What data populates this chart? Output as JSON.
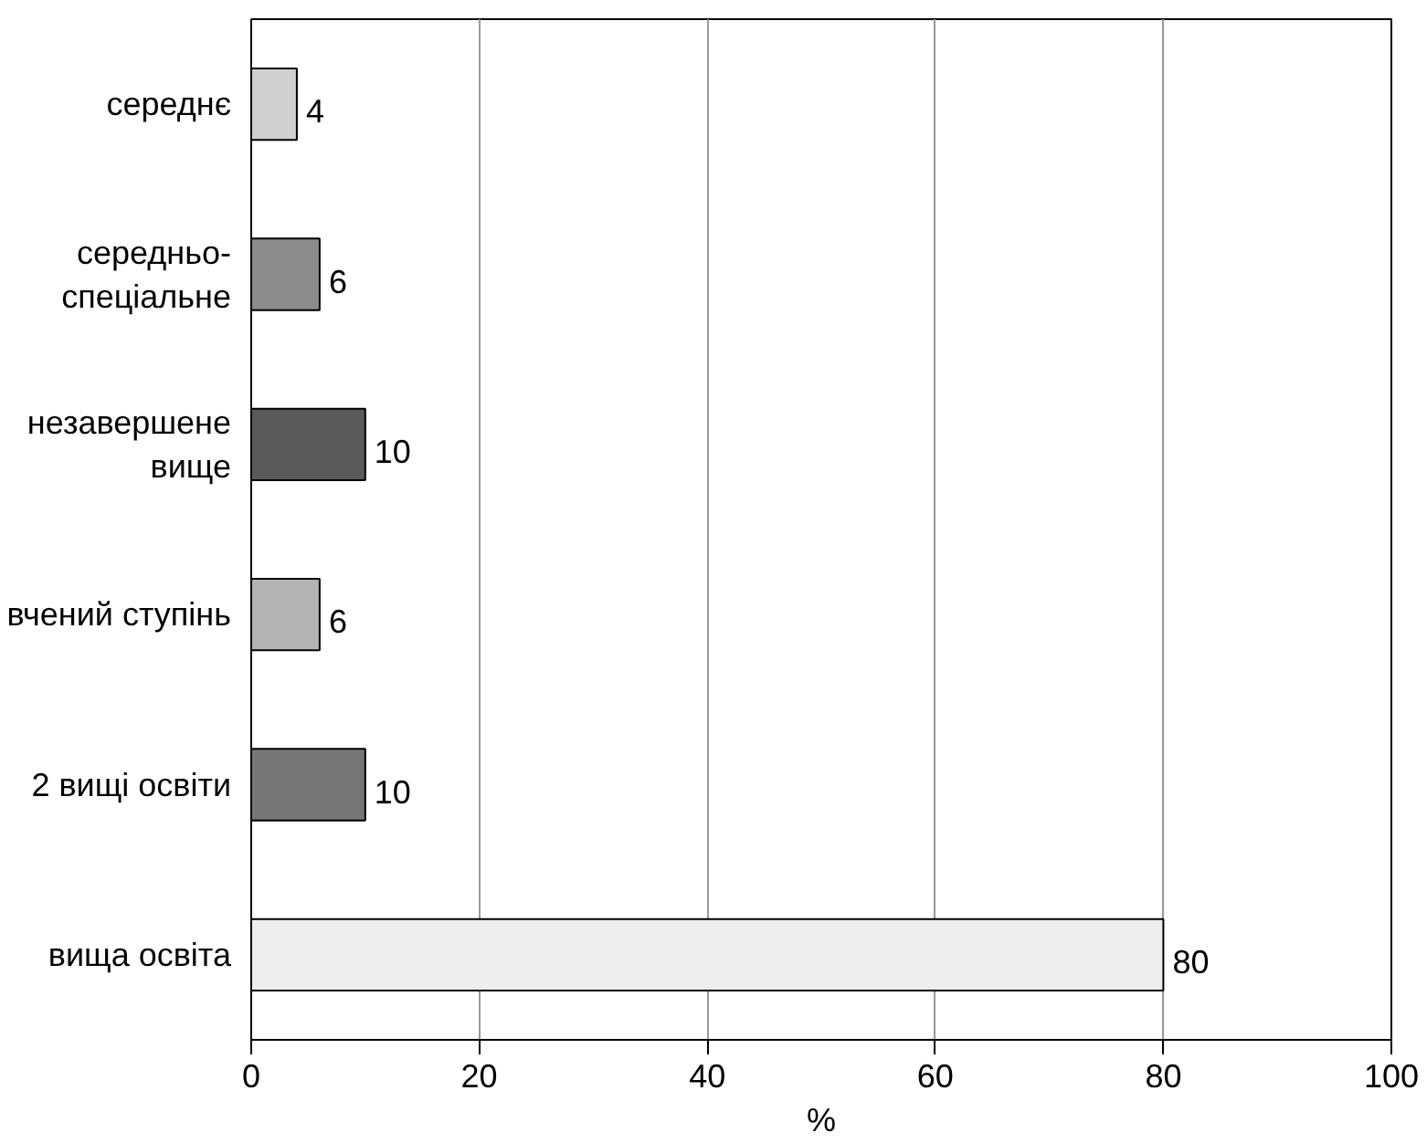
{
  "chart_data": {
    "type": "bar",
    "orientation": "horizontal",
    "xlabel": "%",
    "categories": [
      "середнє",
      "середньо-спеціальне",
      "незавершене вище",
      "вчений ступінь",
      "2 вищі освіти",
      "вища освіта"
    ],
    "values": [
      4,
      6,
      10,
      6,
      10,
      80
    ],
    "colors": [
      "#d0d0d0",
      "#8c8c8c",
      "#5a5a5a",
      "#b4b4b4",
      "#767676",
      "#eeeeee"
    ],
    "xlim": [
      0,
      100
    ],
    "xticks": [
      0,
      20,
      40,
      60,
      80,
      100
    ],
    "grid": "x",
    "data_labels": true
  }
}
